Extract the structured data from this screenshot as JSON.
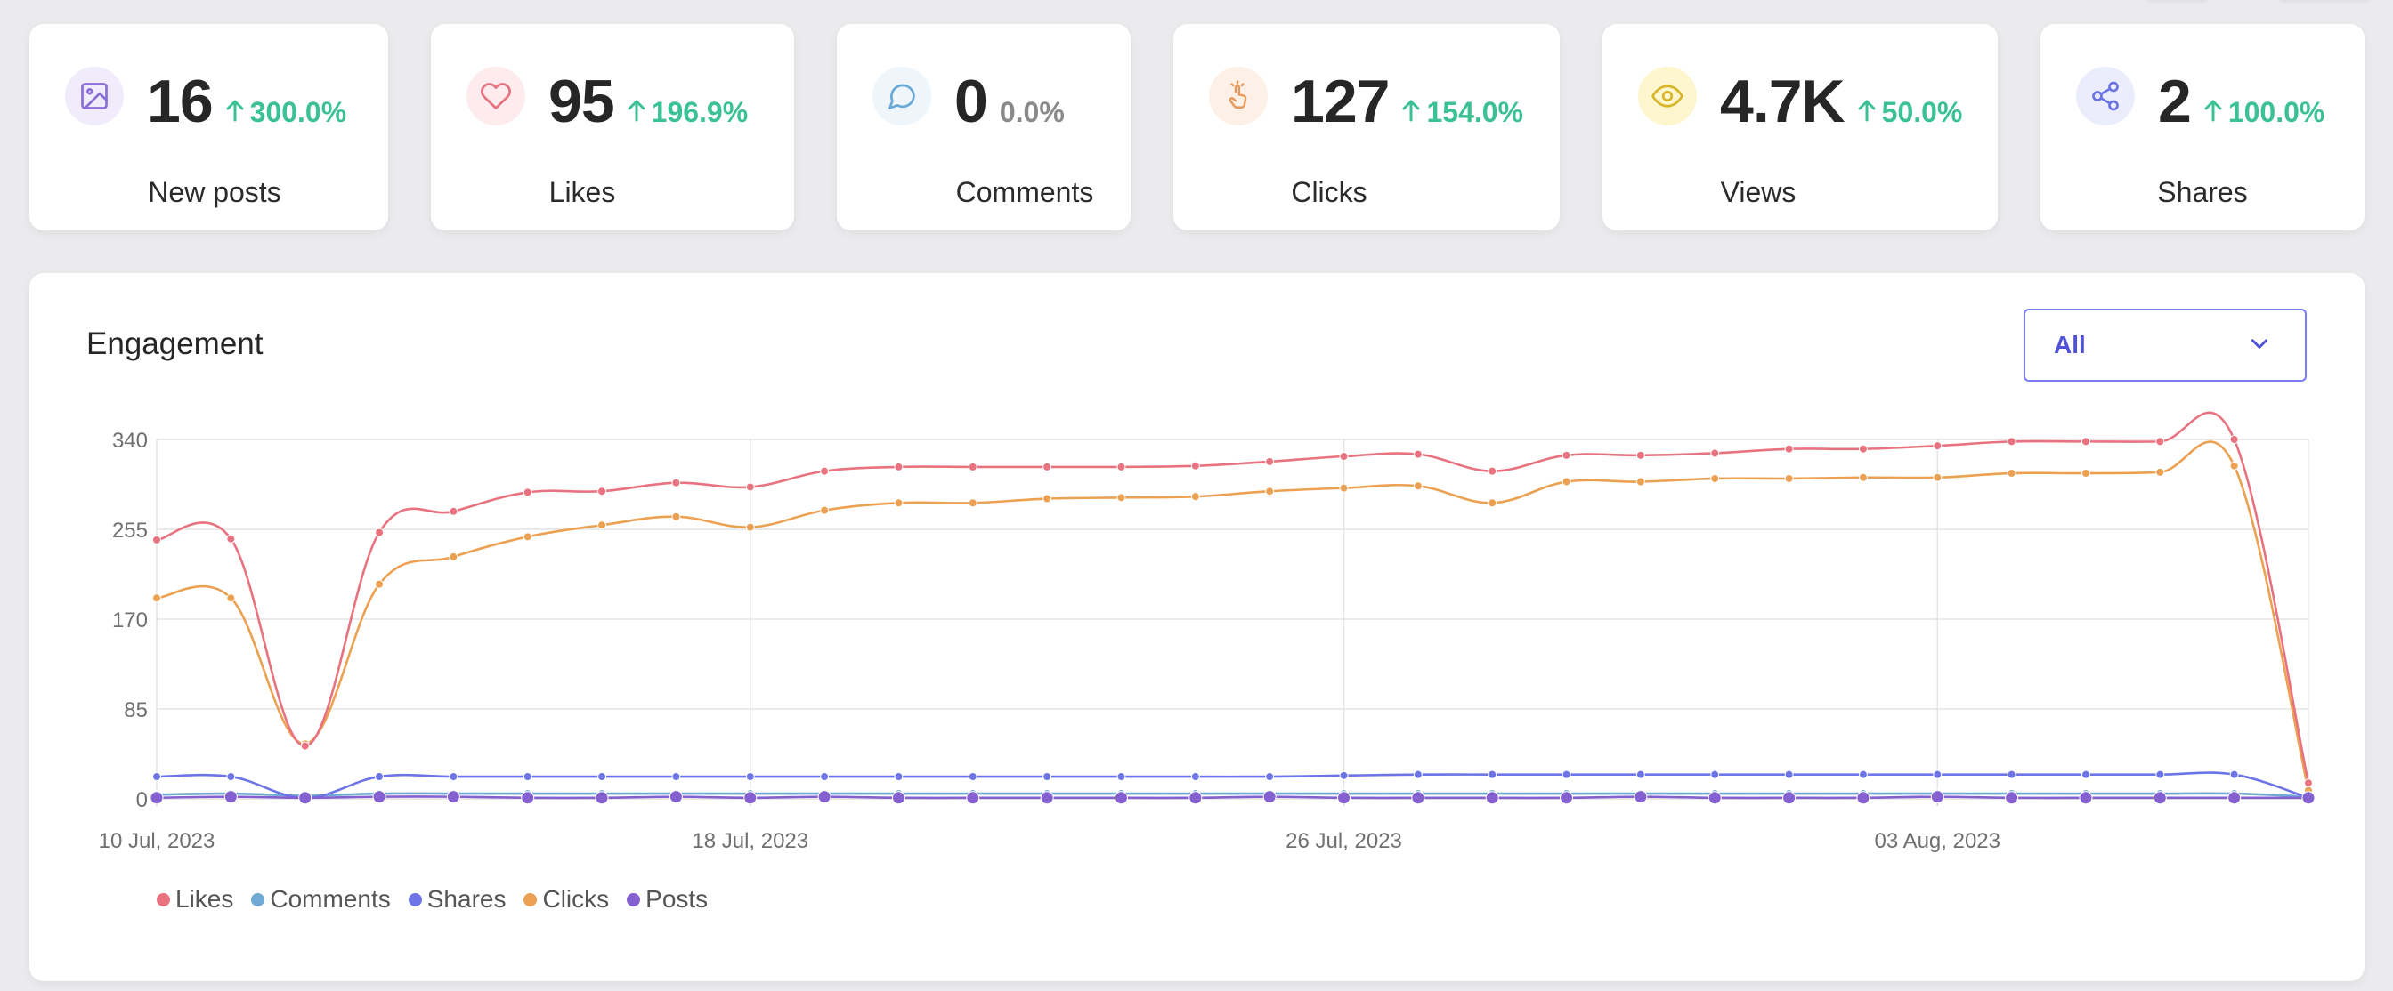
{
  "stats": [
    {
      "icon": "image-icon",
      "value": "16",
      "change": "300.0%",
      "direction": "up",
      "label": "New posts",
      "icon_color": "#8b6fd6",
      "icon_bg": "#f0ecfb"
    },
    {
      "icon": "heart-icon",
      "value": "95",
      "change": "196.9%",
      "direction": "up",
      "label": "Likes",
      "icon_color": "#e5727f",
      "icon_bg": "#fdebee"
    },
    {
      "icon": "comment-icon",
      "value": "0",
      "change": "0.0%",
      "direction": "flat",
      "label": "Comments",
      "icon_color": "#6aa9d6",
      "icon_bg": "#eef6fc"
    },
    {
      "icon": "pointer-click-icon",
      "value": "127",
      "change": "154.0%",
      "direction": "up",
      "label": "Clicks",
      "icon_color": "#e6995a",
      "icon_bg": "#fdf0e6"
    },
    {
      "icon": "eye-icon",
      "value": "4.7K",
      "change": "50.0%",
      "direction": "up",
      "label": "Views",
      "icon_color": "#d8b62a",
      "icon_bg": "#fdf6cf"
    },
    {
      "icon": "share-icon",
      "value": "2",
      "change": "100.0%",
      "direction": "up",
      "label": "Shares",
      "icon_color": "#6b73e4",
      "icon_bg": "#ebedfc"
    }
  ],
  "engagement": {
    "title": "Engagement",
    "filter": {
      "selected": "All"
    }
  },
  "chart_data": {
    "type": "line",
    "x": [
      "2023-07-10",
      "2023-07-11",
      "2023-07-12",
      "2023-07-13",
      "2023-07-14",
      "2023-07-15",
      "2023-07-16",
      "2023-07-17",
      "2023-07-18",
      "2023-07-19",
      "2023-07-20",
      "2023-07-21",
      "2023-07-22",
      "2023-07-23",
      "2023-07-24",
      "2023-07-25",
      "2023-07-26",
      "2023-07-27",
      "2023-07-28",
      "2023-07-29",
      "2023-07-30",
      "2023-07-31",
      "2023-08-01",
      "2023-08-02",
      "2023-08-03",
      "2023-08-04",
      "2023-08-05",
      "2023-08-06",
      "2023-08-07",
      "2023-08-08"
    ],
    "x_ticks": [
      {
        "x": "2023-07-10",
        "label": "10 Jul, 2023"
      },
      {
        "x": "2023-07-18",
        "label": "18 Jul, 2023"
      },
      {
        "x": "2023-07-26",
        "label": "26 Jul, 2023"
      },
      {
        "x": "2023-08-03",
        "label": "03 Aug, 2023"
      }
    ],
    "y_ticks": [
      "0",
      "85",
      "170",
      "255",
      "340"
    ],
    "ylim": [
      0,
      340
    ],
    "grid": true,
    "legend_position": "bottom-left",
    "series": [
      {
        "name": "Likes",
        "color": "#e8727f",
        "marker": "small",
        "values": [
          245,
          246,
          50,
          252,
          272,
          290,
          291,
          299,
          295,
          310,
          314,
          314,
          314,
          314,
          315,
          319,
          324,
          326,
          310,
          325,
          325,
          327,
          331,
          331,
          334,
          338,
          338,
          338,
          340,
          15
        ]
      },
      {
        "name": "Comments",
        "color": "#6fa9d4",
        "marker": "small",
        "values": [
          4,
          5,
          3,
          5,
          5,
          5,
          5,
          5,
          5,
          5,
          5,
          5,
          5,
          5,
          5,
          5,
          5,
          5,
          5,
          5,
          5,
          5,
          5,
          5,
          5,
          5,
          5,
          5,
          5,
          2
        ]
      },
      {
        "name": "Shares",
        "color": "#6c74e6",
        "marker": "small",
        "values": [
          21,
          21,
          1,
          21,
          21,
          21,
          21,
          21,
          21,
          21,
          21,
          21,
          21,
          21,
          21,
          21,
          22,
          23,
          23,
          23,
          23,
          23,
          23,
          23,
          23,
          23,
          23,
          23,
          23,
          1
        ]
      },
      {
        "name": "Clicks",
        "color": "#eca152",
        "marker": "small",
        "values": [
          190,
          190,
          52,
          203,
          229,
          248,
          259,
          267,
          257,
          273,
          280,
          280,
          284,
          285,
          286,
          291,
          294,
          296,
          280,
          300,
          300,
          303,
          303,
          304,
          304,
          308,
          308,
          309,
          315,
          8
        ]
      },
      {
        "name": "Posts",
        "color": "#8460d0",
        "marker": "large",
        "values": [
          1,
          2,
          1,
          2,
          2,
          1,
          1,
          2,
          1,
          2,
          1,
          1,
          1,
          1,
          1,
          2,
          1,
          1,
          1,
          1,
          2,
          1,
          1,
          1,
          2,
          1,
          1,
          1,
          1,
          1
        ]
      }
    ]
  }
}
